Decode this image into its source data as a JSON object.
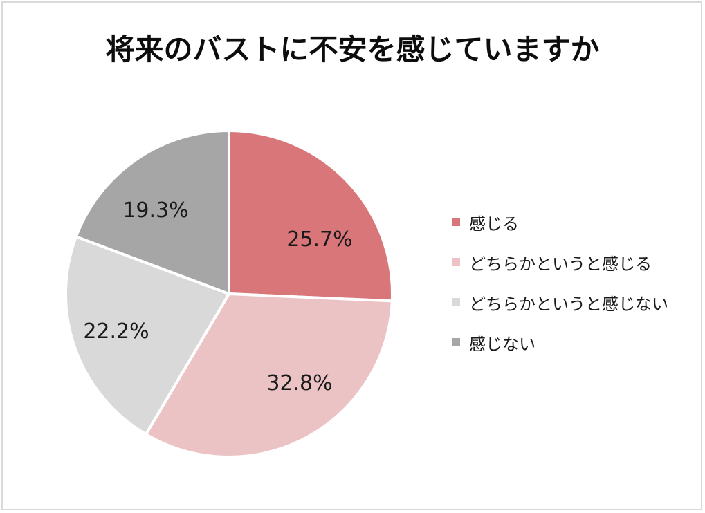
{
  "chart_data": {
    "type": "pie",
    "title": "将来のバストに不安を感じていますか",
    "categories": [
      "感じる",
      "どちらかというと感じる",
      "どちらかというと感じない",
      "感じない"
    ],
    "values": [
      25.7,
      32.8,
      22.2,
      19.3
    ],
    "labels": [
      "25.7%",
      "32.8%",
      "22.2%",
      "19.3%"
    ],
    "colors": [
      "#d97679",
      "#ecc3c4",
      "#d9d9d9",
      "#a6a6a6"
    ],
    "start_angle_deg": 0,
    "direction": "clockwise",
    "legend_position": "right",
    "unit": "%"
  },
  "title": "将来のバストに不安を感じていますか",
  "legend": {
    "items": [
      {
        "label": "感じる",
        "color": "#d97679"
      },
      {
        "label": "どちらかというと感じる",
        "color": "#ecc3c4"
      },
      {
        "label": "どちらかというと感じない",
        "color": "#d9d9d9"
      },
      {
        "label": "感じない",
        "color": "#a6a6a6"
      }
    ]
  },
  "slices": [
    {
      "label": "25.7%"
    },
    {
      "label": "32.8%"
    },
    {
      "label": "22.2%"
    },
    {
      "label": "19.3%"
    }
  ]
}
